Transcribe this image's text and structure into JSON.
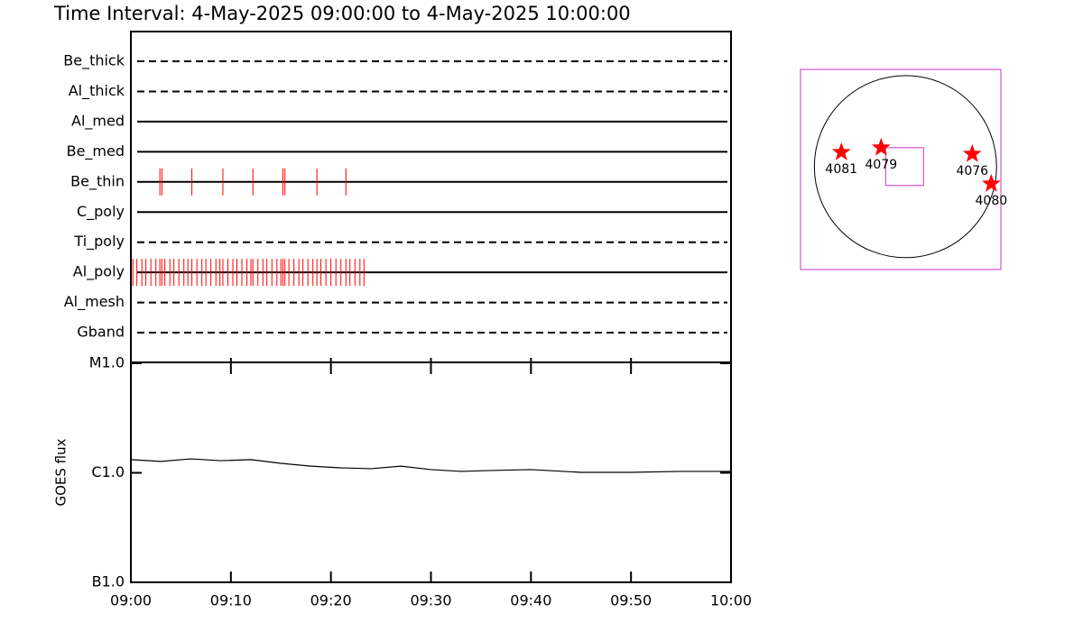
{
  "title": "Time Interval:  4-May-2025 09:00:00 to  4-May-2025 10:00:00",
  "chart_data": [
    {
      "type": "timeline",
      "xlim": [
        0,
        60
      ],
      "color": "#ff0000",
      "series": [
        {
          "name": "Be_thick",
          "style": "dashed",
          "times": []
        },
        {
          "name": "Al_thick",
          "style": "dashed",
          "times": []
        },
        {
          "name": "Al_med",
          "style": "solid",
          "times": []
        },
        {
          "name": "Be_med",
          "style": "solid",
          "times": []
        },
        {
          "name": "Be_thin",
          "style": "solid",
          "times": [
            2.9,
            3.1,
            6.1,
            9.2,
            12.2,
            15.2,
            15.4,
            18.6,
            21.5
          ]
        },
        {
          "name": "C_poly",
          "style": "solid",
          "times": []
        },
        {
          "name": "Ti_poly",
          "style": "dashed",
          "times": []
        },
        {
          "name": "Al_poly",
          "style": "solid",
          "times": [
            0.2,
            0.6,
            1.1,
            1.5,
            2.0,
            2.5,
            2.9,
            3.1,
            3.4,
            3.9,
            4.3,
            4.8,
            5.3,
            5.7,
            6.1,
            6.6,
            7.1,
            7.5,
            8.0,
            8.5,
            8.9,
            9.2,
            9.7,
            10.2,
            10.6,
            11.1,
            11.6,
            12.0,
            12.2,
            12.7,
            13.2,
            13.6,
            14.1,
            14.6,
            15.0,
            15.2,
            15.4,
            15.8,
            16.3,
            16.8,
            17.2,
            17.7,
            18.2,
            18.6,
            19.0,
            19.5,
            20.0,
            20.5,
            21.0,
            21.5,
            21.9,
            22.4,
            22.9,
            23.3
          ]
        },
        {
          "name": "Al_mesh",
          "style": "dashed",
          "times": []
        },
        {
          "name": "Gband",
          "style": "dashed",
          "times": []
        }
      ]
    },
    {
      "type": "line",
      "ylabel": "GOES flux",
      "log": true,
      "color": "#000000",
      "x": [
        0,
        3,
        6,
        9,
        12,
        15,
        18,
        21,
        24,
        27,
        30,
        33,
        36,
        40,
        45,
        50,
        55,
        60
      ],
      "values": [
        1.32e-06,
        1.27e-06,
        1.34e-06,
        1.29e-06,
        1.32e-06,
        1.22e-06,
        1.15e-06,
        1.11e-06,
        1.09e-06,
        1.15e-06,
        1.07e-06,
        1.03e-06,
        1.05e-06,
        1.07e-06,
        1.01e-06,
        1.01e-06,
        1.03e-06,
        1.03e-06
      ],
      "xlim": [
        0,
        60
      ],
      "xticks": [
        {
          "value": 0,
          "label": "09:00"
        },
        {
          "value": 10,
          "label": "09:10"
        },
        {
          "value": 20,
          "label": "09:20"
        },
        {
          "value": 30,
          "label": "09:30"
        },
        {
          "value": 40,
          "label": "09:40"
        },
        {
          "value": 50,
          "label": "09:50"
        },
        {
          "value": 60,
          "label": "10:00"
        }
      ],
      "ylim": [
        1e-07,
        1e-05
      ],
      "yticks": [
        {
          "value": 1e-07,
          "label": "B1.0"
        },
        {
          "value": 1e-06,
          "label": "C1.0"
        },
        {
          "value": 1e-05,
          "label": "M1.0"
        }
      ]
    },
    {
      "type": "map",
      "xlim": [
        -1100,
        1000
      ],
      "ylim": [
        -1080,
        1020
      ],
      "radius": 955,
      "frame_color": "#cc33cc",
      "color": "#ff0000",
      "fov": {
        "x": -9,
        "y": 0,
        "size": 397
      },
      "points": [
        {
          "name": "4081",
          "x": -672,
          "y": 151
        },
        {
          "name": "4079",
          "x": -255,
          "y": 199
        },
        {
          "name": "4076",
          "x": 700,
          "y": 132
        },
        {
          "name": "4080",
          "x": 899,
          "y": -180
        }
      ]
    }
  ]
}
